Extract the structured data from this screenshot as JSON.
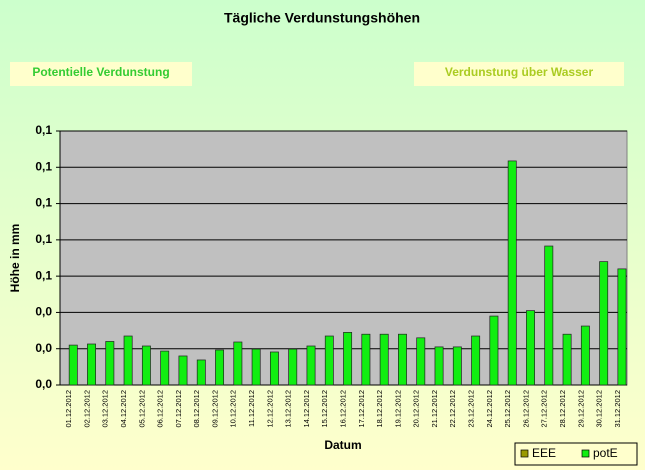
{
  "chart_data": {
    "type": "bar",
    "title": "Tägliche Verdunstungshöhen",
    "annotations": [
      "Potentielle Verdunstung",
      "Verdunstung über Wasser"
    ],
    "y_label": "Höhe in mm",
    "x_label": "Datum",
    "categories": [
      "01.12.2012",
      "02.12.2012",
      "03.12.2012",
      "04.12.2012",
      "05.12.2012",
      "06.12.2012",
      "07.12.2012",
      "08.12.2012",
      "09.12.2012",
      "10.12.2012",
      "11.12.2012",
      "12.12.2012",
      "13.12.2012",
      "14.12.2012",
      "15.12.2012",
      "16.12.2012",
      "17.12.2012",
      "18.12.2012",
      "19.12.2012",
      "20.12.2012",
      "21.12.2012",
      "22.12.2012",
      "23.12.2012",
      "24.12.2012",
      "25.12.2012",
      "26.12.2012",
      "27.12.2012",
      "28.12.2012",
      "29.12.2012",
      "30.12.2012",
      "31.12.2012"
    ],
    "series": [
      {
        "name": "EEE",
        "color": "#999900",
        "values": [
          null,
          null,
          null,
          null,
          null,
          null,
          null,
          null,
          null,
          null,
          null,
          null,
          null,
          null,
          null,
          null,
          null,
          null,
          null,
          null,
          null,
          null,
          null,
          null,
          null,
          null,
          null,
          null,
          null,
          null,
          null
        ]
      },
      {
        "name": "potE",
        "color": "#11ee11",
        "values": [
          0.022,
          0.0226,
          0.024,
          0.027,
          0.0215,
          0.0187,
          0.016,
          0.0138,
          0.0193,
          0.0237,
          0.0198,
          0.0182,
          0.0198,
          0.0215,
          0.027,
          0.029,
          0.028,
          0.028,
          0.028,
          0.026,
          0.021,
          0.021,
          0.027,
          0.038,
          0.1235,
          0.041,
          0.0766,
          0.028,
          0.0325,
          0.068,
          0.064
        ]
      }
    ],
    "ylim": [
      0,
      0.14
    ],
    "yticks": [
      {
        "value": 0,
        "label": "0,0"
      },
      {
        "value": 0.02,
        "label": "0,0"
      },
      {
        "value": 0.04,
        "label": "0,0"
      },
      {
        "value": 0.06,
        "label": "0,1"
      },
      {
        "value": 0.08,
        "label": "0,1"
      },
      {
        "value": 0.1,
        "label": "0,1"
      },
      {
        "value": 0.12,
        "label": "0,1"
      },
      {
        "value": 0.14,
        "label": "0,1"
      }
    ],
    "grid": true,
    "legend": "bottom-right"
  }
}
